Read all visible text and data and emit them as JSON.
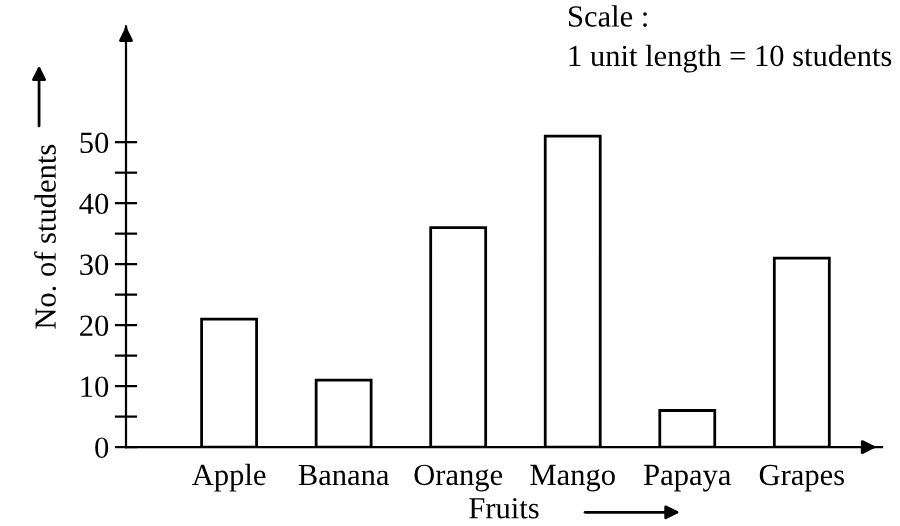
{
  "chart_data": {
    "type": "bar",
    "xlabel": "Fruits",
    "ylabel": "No. of students",
    "categories": [
      "Apple",
      "Banana",
      "Orange",
      "Mango",
      "Papaya",
      "Grapes"
    ],
    "values": [
      21,
      11,
      36,
      51,
      6,
      31
    ],
    "color": "#ffffff",
    "ylim": [
      0,
      69
    ],
    "yticks": [
      0,
      {
        "value": 5,
        "label": null
      },
      10,
      {
        "value": 15,
        "label": null
      },
      20,
      {
        "value": 25,
        "label": null
      },
      30,
      {
        "value": 35,
        "label": null
      },
      40,
      {
        "value": 45,
        "label": null
      },
      50
    ],
    "grid": false,
    "annotations": [
      "Scale :",
      "1 unit length = 10 students"
    ]
  }
}
